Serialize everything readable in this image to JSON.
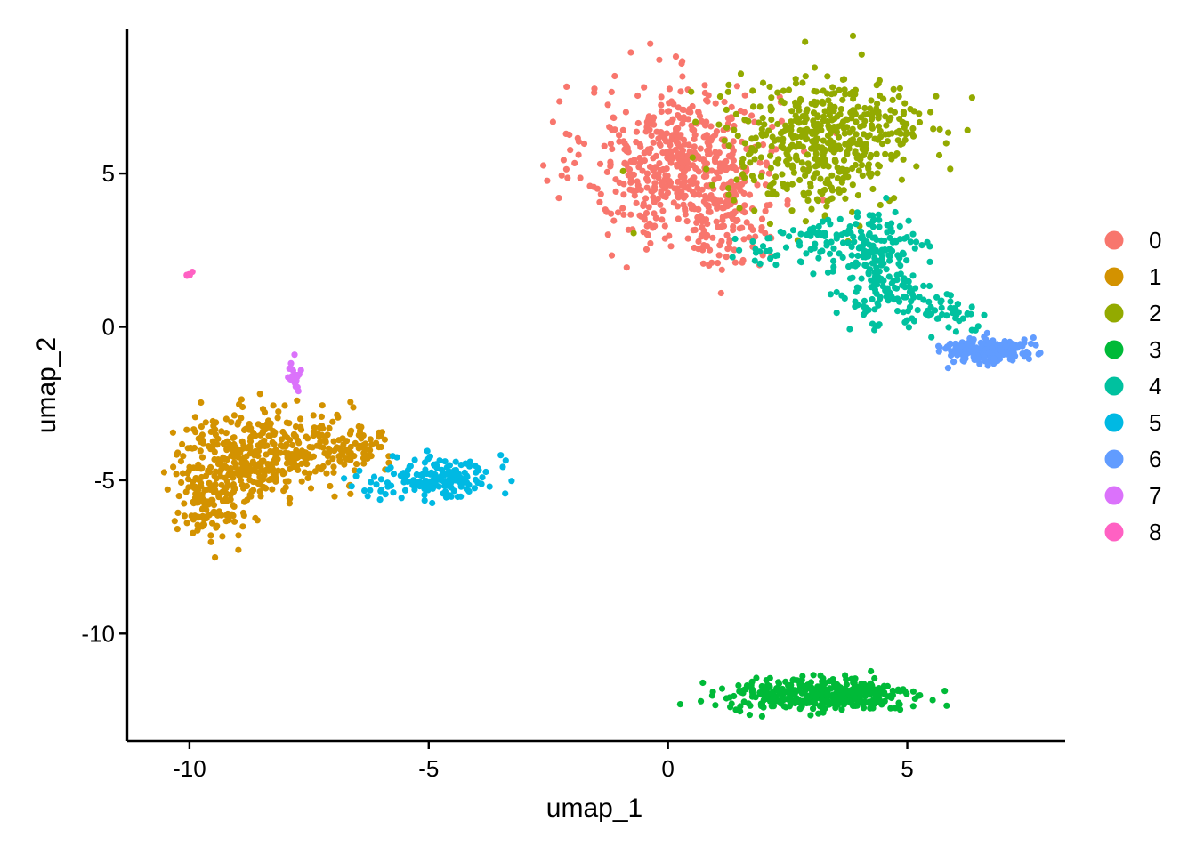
{
  "chart_data": {
    "type": "scatter",
    "title": "",
    "xlabel": "umap_1",
    "ylabel": "umap_2",
    "xlim": [
      -11.3,
      8.3
    ],
    "ylim": [
      -13.5,
      9.7
    ],
    "x_ticks": [
      -10,
      -5,
      0,
      5
    ],
    "y_ticks": [
      5,
      0,
      -5,
      -10
    ],
    "x_tick_labels": [
      "-10",
      "-5",
      "0",
      "5"
    ],
    "y_tick_labels": [
      "5",
      "0",
      "-5",
      "-10"
    ],
    "grid": false,
    "legend_position": "right",
    "series": [
      {
        "name": "0",
        "color": "#F8766D",
        "clusters": [
          {
            "cx": 0.3,
            "cy": 5.3,
            "sx": 1.0,
            "sy": 1.3,
            "n": 560
          },
          {
            "cx": 1.2,
            "cy": 3.4,
            "sx": 0.45,
            "sy": 0.7,
            "n": 80
          }
        ]
      },
      {
        "name": "1",
        "color": "#D39200",
        "clusters": [
          {
            "cx": -8.8,
            "cy": -4.3,
            "sx": 0.75,
            "sy": 0.75,
            "n": 300
          },
          {
            "cx": -9.6,
            "cy": -5.9,
            "sx": 0.35,
            "sy": 0.6,
            "n": 110
          },
          {
            "cx": -7.4,
            "cy": -3.9,
            "sx": 0.75,
            "sy": 0.6,
            "n": 150
          },
          {
            "cx": -6.4,
            "cy": -3.9,
            "sx": 0.3,
            "sy": 0.25,
            "n": 30
          }
        ]
      },
      {
        "name": "2",
        "color": "#93AA00",
        "clusters": [
          {
            "cx": 3.2,
            "cy": 6.0,
            "sx": 1.0,
            "sy": 1.05,
            "n": 470
          },
          {
            "cx": 4.6,
            "cy": 6.6,
            "sx": 0.4,
            "sy": 0.5,
            "n": 35
          }
        ]
      },
      {
        "name": "3",
        "color": "#00BA38",
        "clusters": [
          {
            "cx": 3.3,
            "cy": -12.0,
            "sx": 0.95,
            "sy": 0.3,
            "n": 330
          },
          {
            "cx": 1.9,
            "cy": -12.0,
            "sx": 0.4,
            "sy": 0.2,
            "n": 40
          }
        ]
      },
      {
        "name": "4",
        "color": "#00C19F",
        "clusters": [
          {
            "cx": 4.3,
            "cy": 2.5,
            "sx": 0.5,
            "sy": 0.6,
            "n": 130
          },
          {
            "cx": 4.8,
            "cy": 1.0,
            "sx": 0.55,
            "sy": 0.5,
            "n": 110
          },
          {
            "cx": 3.2,
            "cy": 2.9,
            "sx": 0.4,
            "sy": 0.3,
            "n": 40
          },
          {
            "cx": 2.0,
            "cy": 2.5,
            "sx": 0.5,
            "sy": 0.25,
            "n": 25
          },
          {
            "cx": 5.9,
            "cy": 0.4,
            "sx": 0.3,
            "sy": 0.3,
            "n": 30
          }
        ]
      },
      {
        "name": "5",
        "color": "#00B9E3",
        "clusters": [
          {
            "cx": -4.7,
            "cy": -4.9,
            "sx": 0.55,
            "sy": 0.35,
            "n": 160
          },
          {
            "cx": -6.1,
            "cy": -5.2,
            "sx": 0.35,
            "sy": 0.3,
            "n": 12
          }
        ]
      },
      {
        "name": "6",
        "color": "#619CFF",
        "clusters": [
          {
            "cx": 6.6,
            "cy": -0.75,
            "sx": 0.45,
            "sy": 0.2,
            "n": 190
          }
        ]
      },
      {
        "name": "7",
        "color": "#DB72FB",
        "clusters": [
          {
            "cx": -7.8,
            "cy": -1.55,
            "sx": 0.06,
            "sy": 0.25,
            "n": 25
          }
        ]
      },
      {
        "name": "8",
        "color": "#FF61C3",
        "clusters": [
          {
            "cx": -10.0,
            "cy": 1.72,
            "sx": 0.05,
            "sy": 0.04,
            "n": 6
          }
        ]
      }
    ]
  }
}
